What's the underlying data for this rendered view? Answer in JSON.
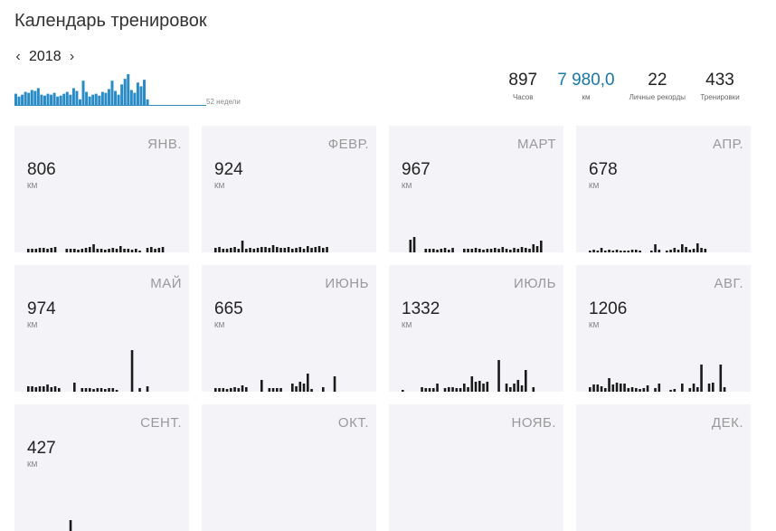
{
  "page": {
    "title": "Календарь тренировок"
  },
  "year_nav": {
    "year": "2018",
    "prev_icon": "chevron-left-icon",
    "next_icon": "chevron-right-icon"
  },
  "weekly": {
    "label": "52 недели",
    "color": "#2a8cc6",
    "baseline_color": "#2a8cc6",
    "values": [
      12,
      9,
      11,
      14,
      13,
      16,
      15,
      18,
      11,
      10,
      12,
      11,
      13,
      9,
      10,
      12,
      14,
      11,
      18,
      15,
      6,
      26,
      14,
      9,
      11,
      12,
      10,
      14,
      13,
      17,
      26,
      15,
      11,
      22,
      28,
      33,
      16,
      13,
      24,
      20,
      27,
      6
    ]
  },
  "stats": [
    {
      "value": "897",
      "label": "Часов",
      "accent": false
    },
    {
      "value": "7 980,0",
      "label": "км",
      "accent": true
    },
    {
      "value": "22",
      "label": "Личные рекорды",
      "accent": false
    },
    {
      "value": "433",
      "label": "Тренировки",
      "accent": false
    }
  ],
  "months": [
    {
      "name": "ЯНВ.",
      "value": "806",
      "unit": "КМ",
      "bars": [
        4,
        4,
        4,
        5,
        5,
        4,
        5,
        6,
        0,
        0,
        4,
        4,
        4,
        3,
        4,
        5,
        6,
        9,
        4,
        4,
        3,
        4,
        5,
        4,
        7,
        4,
        4,
        3,
        4,
        2,
        0,
        5,
        6,
        4,
        5,
        6
      ]
    },
    {
      "name": "ФЕВР.",
      "value": "924",
      "unit": "КМ",
      "bars": [
        5,
        6,
        4,
        4,
        5,
        6,
        4,
        13,
        4,
        5,
        4,
        5,
        6,
        6,
        5,
        8,
        6,
        5,
        5,
        6,
        4,
        5,
        6,
        4,
        7,
        5,
        6,
        7,
        5,
        6
      ]
    },
    {
      "name": "МАРТ",
      "value": "967",
      "unit": "КМ",
      "bars": [
        0,
        0,
        14,
        17,
        0,
        0,
        4,
        4,
        4,
        3,
        4,
        5,
        3,
        5,
        0,
        0,
        4,
        4,
        4,
        5,
        4,
        3,
        4,
        4,
        5,
        4,
        6,
        4,
        3,
        5,
        4,
        6,
        5,
        4,
        9,
        7,
        13
      ]
    },
    {
      "name": "АПР.",
      "value": "678",
      "unit": "КМ",
      "bars": [
        2,
        3,
        2,
        5,
        2,
        3,
        2,
        3,
        2,
        2,
        2,
        3,
        3,
        2,
        0,
        0,
        2,
        9,
        3,
        0,
        2,
        3,
        5,
        3,
        9,
        6,
        3,
        4,
        10,
        5,
        4
      ]
    },
    {
      "name": "МАЙ",
      "value": "974",
      "unit": "КМ",
      "bars": [
        6,
        6,
        5,
        6,
        6,
        8,
        5,
        6,
        4,
        0,
        0,
        0,
        10,
        0,
        4,
        4,
        4,
        3,
        4,
        4,
        3,
        4,
        4,
        2,
        0,
        0,
        0,
        46,
        0,
        4,
        0,
        6,
        0,
        0
      ]
    },
    {
      "name": "ИЮНЬ",
      "value": "665",
      "unit": "КМ",
      "bars": [
        4,
        4,
        4,
        3,
        4,
        5,
        4,
        7,
        5,
        0,
        0,
        0,
        13,
        0,
        4,
        4,
        4,
        4,
        0,
        0,
        9,
        6,
        11,
        9,
        20,
        3,
        0,
        0,
        5,
        0,
        0,
        17
      ]
    },
    {
      "name": "ИЮЛЬ",
      "value": "1332",
      "unit": "КМ",
      "bars": [
        2,
        0,
        0,
        0,
        0,
        5,
        4,
        4,
        4,
        9,
        0,
        4,
        5,
        5,
        4,
        4,
        9,
        5,
        17,
        11,
        12,
        9,
        11,
        0,
        0,
        35,
        0,
        9,
        5,
        9,
        13,
        7,
        24,
        0,
        5
      ]
    },
    {
      "name": "АВГ.",
      "value": "1206",
      "unit": "КМ",
      "bars": [
        5,
        8,
        8,
        6,
        4,
        15,
        8,
        10,
        9,
        9,
        4,
        5,
        4,
        3,
        4,
        7,
        0,
        4,
        9,
        0,
        0,
        2,
        3,
        0,
        9,
        0,
        4,
        9,
        5,
        30,
        0,
        9,
        10,
        0,
        30,
        5
      ]
    },
    {
      "name": "СЕНТ.",
      "value": "427",
      "unit": "КМ",
      "bars": [
        0,
        0,
        0,
        0,
        0,
        0,
        0,
        0,
        0,
        0,
        0,
        12,
        0,
        0,
        0,
        0,
        0,
        0,
        0,
        0,
        0,
        0,
        0,
        0,
        0,
        0,
        0,
        0,
        0,
        0
      ]
    },
    {
      "name": "ОКТ.",
      "value": "",
      "unit": "",
      "bars": []
    },
    {
      "name": "НОЯБ.",
      "value": "",
      "unit": "",
      "bars": []
    },
    {
      "name": "ДЕК.",
      "value": "",
      "unit": "",
      "bars": []
    }
  ]
}
